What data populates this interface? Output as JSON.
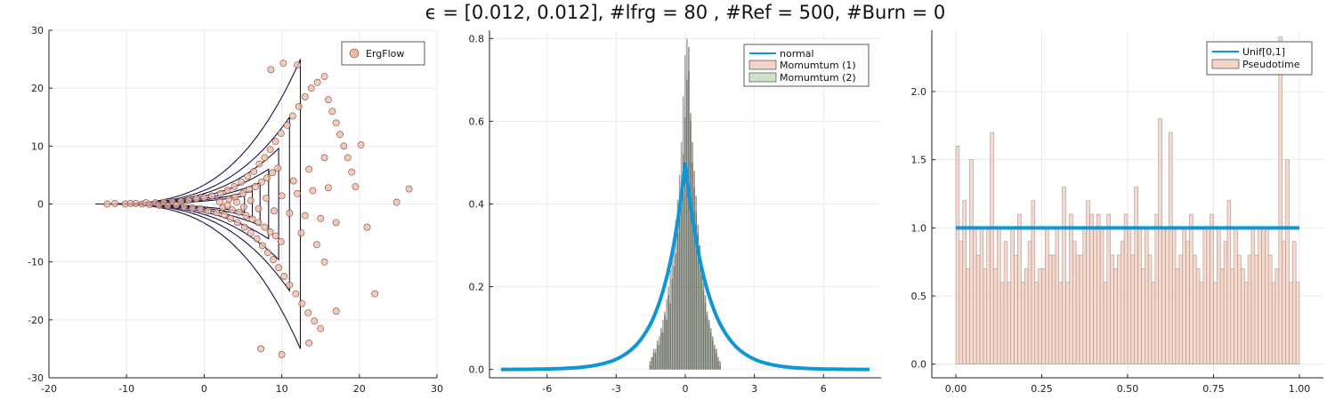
{
  "figure": {
    "title": "ϵ = [0.012, 0.012], #lfrg = 80 , #Ref = 500, #Burn = 0"
  },
  "colors": {
    "scatter_fill": "#f0b9a4",
    "scatter_edge": "#7a4a3a",
    "contour": "#1a1046",
    "line_blue": "#0f96d6",
    "hist1_fill": "#f3d4c8",
    "hist2_fill": "#cfe3cb",
    "overlap_fill": "#3d4334",
    "grid": "#ebebeb",
    "axis": "#222222"
  },
  "chart_data": [
    {
      "type": "scatter",
      "panel": "left",
      "title": "",
      "xlabel": "",
      "ylabel": "",
      "xlim": [
        -20,
        30
      ],
      "ylim": [
        -30,
        30
      ],
      "xticks": [
        "-20",
        "-10",
        "0",
        "10",
        "20",
        "30"
      ],
      "yticks": [
        "-30",
        "-20",
        "-10",
        "0",
        "10",
        "20",
        "30"
      ],
      "grid": true,
      "legend": {
        "position": "top-right",
        "entries": [
          "ErgFlow"
        ]
      },
      "series": [
        {
          "name": "ErgFlow",
          "points": [
            [
              -12.5,
              0.0
            ],
            [
              -11.5,
              0.1
            ],
            [
              -10.2,
              0.0
            ],
            [
              -9.5,
              0.1
            ],
            [
              -8.8,
              0.1
            ],
            [
              -8.0,
              0.0
            ],
            [
              -7.5,
              0.2
            ],
            [
              -7.0,
              -0.1
            ],
            [
              -6.3,
              0.2
            ],
            [
              -5.8,
              -0.2
            ],
            [
              -5.2,
              0.3
            ],
            [
              -4.7,
              -0.3
            ],
            [
              -4.1,
              0.4
            ],
            [
              -3.6,
              -0.2
            ],
            [
              -3.0,
              0.5
            ],
            [
              -2.6,
              -0.5
            ],
            [
              -2.0,
              0.6
            ],
            [
              -1.5,
              -0.7
            ],
            [
              -1.0,
              0.9
            ],
            [
              -0.5,
              -0.8
            ],
            [
              0.0,
              1.1
            ],
            [
              0.5,
              -1.2
            ],
            [
              1.0,
              1.4
            ],
            [
              1.6,
              -1.5
            ],
            [
              2.1,
              1.8
            ],
            [
              2.6,
              -1.9
            ],
            [
              3.0,
              2.4
            ],
            [
              3.4,
              -2.5
            ],
            [
              3.9,
              3.0
            ],
            [
              4.3,
              -3.2
            ],
            [
              4.8,
              3.8
            ],
            [
              5.2,
              -4.0
            ],
            [
              5.6,
              4.8
            ],
            [
              6.0,
              -5.0
            ],
            [
              6.4,
              5.6
            ],
            [
              6.8,
              -6.0
            ],
            [
              7.1,
              6.9
            ],
            [
              7.5,
              -7.2
            ],
            [
              7.8,
              8.0
            ],
            [
              8.2,
              -8.4
            ],
            [
              8.5,
              9.4
            ],
            [
              8.9,
              -9.6
            ],
            [
              9.2,
              10.8
            ],
            [
              9.6,
              -11.0
            ],
            [
              9.9,
              12.2
            ],
            [
              10.3,
              -12.5
            ],
            [
              10.7,
              13.6
            ],
            [
              11.0,
              -14.0
            ],
            [
              11.4,
              15.2
            ],
            [
              11.8,
              -15.5
            ],
            [
              12.2,
              16.8
            ],
            [
              12.6,
              -17.2
            ],
            [
              13.0,
              18.5
            ],
            [
              13.4,
              -18.8
            ],
            [
              13.8,
              20.0
            ],
            [
              14.2,
              -20.2
            ],
            [
              14.6,
              21.0
            ],
            [
              15.0,
              -21.5
            ],
            [
              15.5,
              22.0
            ],
            [
              16.0,
              18.0
            ],
            [
              16.5,
              16.0
            ],
            [
              17.0,
              14.0
            ],
            [
              17.5,
              12.0
            ],
            [
              18.0,
              10.0
            ],
            [
              18.5,
              8.0
            ],
            [
              19.0,
              5.5
            ],
            [
              19.5,
              3.0
            ],
            [
              20.2,
              10.2
            ],
            [
              21.0,
              -4.0
            ],
            [
              22.0,
              -15.5
            ],
            [
              24.8,
              0.3
            ],
            [
              26.4,
              2.6
            ],
            [
              12.0,
              24.0
            ],
            [
              10.2,
              24.3
            ],
            [
              8.6,
              23.2
            ],
            [
              10.0,
              -26.0
            ],
            [
              13.5,
              -24.0
            ],
            [
              7.3,
              -25.0
            ],
            [
              17.0,
              -18.5
            ],
            [
              15.5,
              -10.0
            ],
            [
              2.0,
              0.4
            ],
            [
              2.4,
              -0.6
            ],
            [
              3.2,
              0.8
            ],
            [
              3.6,
              -1.0
            ],
            [
              4.0,
              1.2
            ],
            [
              4.5,
              -1.4
            ],
            [
              5.0,
              1.8
            ],
            [
              5.4,
              -2.0
            ],
            [
              5.8,
              2.5
            ],
            [
              6.2,
              -2.6
            ],
            [
              6.6,
              3.0
            ],
            [
              7.0,
              -3.2
            ],
            [
              7.4,
              3.8
            ],
            [
              7.8,
              -4.0
            ],
            [
              8.1,
              4.5
            ],
            [
              8.5,
              -4.8
            ],
            [
              8.8,
              5.4
            ],
            [
              9.2,
              -5.5
            ],
            [
              9.5,
              6.2
            ],
            [
              9.9,
              -6.5
            ],
            [
              3.0,
              -0.2
            ],
            [
              4.2,
              0.3
            ],
            [
              5.1,
              -0.5
            ],
            [
              6.0,
              0.6
            ],
            [
              7.0,
              -0.8
            ],
            [
              8.0,
              1.0
            ],
            [
              9.0,
              -1.2
            ],
            [
              10.0,
              1.4
            ],
            [
              11.0,
              -1.6
            ],
            [
              12.0,
              1.8
            ],
            [
              13.0,
              -2.0
            ],
            [
              14.0,
              2.3
            ],
            [
              15.0,
              -2.5
            ],
            [
              16.0,
              2.8
            ],
            [
              17.0,
              -3.2
            ],
            [
              11.5,
              4.0
            ],
            [
              12.5,
              -5.0
            ],
            [
              13.5,
              6.0
            ],
            [
              14.5,
              -7.0
            ],
            [
              15.5,
              8.0
            ]
          ]
        }
      ],
      "contours": [
        {
          "x_max": 12.4,
          "y_max": 25.0
        },
        {
          "x_max": 11.0,
          "y_max": 15.0
        },
        {
          "x_max": 9.6,
          "y_max": 9.6
        },
        {
          "x_max": 8.3,
          "y_max": 6.0
        },
        {
          "x_max": 7.2,
          "y_max": 3.7
        },
        {
          "x_max": 6.2,
          "y_max": 2.3
        },
        {
          "x_max": 5.2,
          "y_max": 1.4
        }
      ]
    },
    {
      "type": "bar",
      "panel": "middle",
      "title": "",
      "xlabel": "",
      "ylabel": "",
      "xlim": [
        -8.5,
        8.5
      ],
      "ylim": [
        -0.02,
        0.82
      ],
      "xticks": [
        "-6",
        "-3",
        "0",
        "3",
        "6"
      ],
      "yticks": [
        "0.0",
        "0.2",
        "0.4",
        "0.6",
        "0.8"
      ],
      "grid": true,
      "legend": {
        "position": "top-right",
        "entries": [
          "normal",
          "Momumtum (1)",
          "Momumtum (2)"
        ]
      },
      "line": {
        "name": "normal",
        "type": "laplace",
        "x_range": [
          -8,
          8
        ],
        "peak": 0.5,
        "scale": 1.0
      },
      "series": [
        {
          "name": "Momumtum (1)",
          "bin_width": 0.08,
          "values": [
            0.02,
            0.03,
            0.05,
            0.04,
            0.07,
            0.06,
            0.1,
            0.09,
            0.13,
            0.12,
            0.18,
            0.16,
            0.22,
            0.25,
            0.28,
            0.33,
            0.38,
            0.45,
            0.52,
            0.61,
            0.7,
            0.78,
            0.62,
            0.55,
            0.48,
            0.42,
            0.35,
            0.3,
            0.26,
            0.21,
            0.18,
            0.14,
            0.12,
            0.1,
            0.08,
            0.06,
            0.05,
            0.03,
            0.02
          ],
          "x_start": -1.56
        },
        {
          "name": "Momumtum (2)",
          "bin_width": 0.08,
          "values": [
            0.01,
            0.03,
            0.04,
            0.05,
            0.06,
            0.08,
            0.09,
            0.12,
            0.14,
            0.17,
            0.2,
            0.24,
            0.27,
            0.32,
            0.36,
            0.41,
            0.47,
            0.55,
            0.66,
            0.76,
            0.8,
            0.72,
            0.6,
            0.5,
            0.44,
            0.38,
            0.33,
            0.28,
            0.23,
            0.19,
            0.16,
            0.13,
            0.11,
            0.09,
            0.07,
            0.05,
            0.04,
            0.02,
            0.01
          ],
          "x_start": -1.56
        }
      ]
    },
    {
      "type": "bar",
      "panel": "right",
      "title": "",
      "xlabel": "",
      "ylabel": "",
      "xlim": [
        -0.07,
        1.07
      ],
      "ylim": [
        -0.1,
        2.45
      ],
      "xticks": [
        "0.00",
        "0.25",
        "0.50",
        "0.75",
        "1.00"
      ],
      "yticks": [
        "0.0",
        "0.5",
        "1.0",
        "1.5",
        "2.0"
      ],
      "grid": true,
      "legend": {
        "position": "top-right",
        "entries": [
          "Unif[0,1]",
          "Pseudotime"
        ]
      },
      "line": {
        "name": "Unif[0,1]",
        "x_range": [
          0,
          1
        ],
        "y": 1.0
      },
      "series": [
        {
          "name": "Pseudotime",
          "bin_width": 0.01,
          "values": [
            1.6,
            0.9,
            1.2,
            0.7,
            1.5,
            1.0,
            0.8,
            1.0,
            0.7,
            1.0,
            1.7,
            0.7,
            1.0,
            0.6,
            0.9,
            0.6,
            1.0,
            0.8,
            1.1,
            0.6,
            0.7,
            0.9,
            1.2,
            0.6,
            0.7,
            0.7,
            1.0,
            0.8,
            0.8,
            1.0,
            0.6,
            1.3,
            0.6,
            1.1,
            0.9,
            0.8,
            0.8,
            1.0,
            1.2,
            1.1,
            1.0,
            1.1,
            1.0,
            0.6,
            1.1,
            0.8,
            0.7,
            0.8,
            0.9,
            1.1,
            1.0,
            0.8,
            1.3,
            1.0,
            0.7,
            1.0,
            0.8,
            0.6,
            1.1,
            1.8,
            1.0,
            1.0,
            1.7,
            1.0,
            0.7,
            0.8,
            1.0,
            0.9,
            1.1,
            0.8,
            0.7,
            0.6,
            1.0,
            1.0,
            1.1,
            0.6,
            1.0,
            0.7,
            0.9,
            1.2,
            0.7,
            1.0,
            0.8,
            0.7,
            0.6,
            0.8,
            1.0,
            0.8,
            1.0,
            1.0,
            1.0,
            0.8,
            0.6,
            0.7,
            2.4,
            0.9,
            1.5,
            0.6,
            0.9,
            0.6
          ]
        }
      ]
    }
  ]
}
